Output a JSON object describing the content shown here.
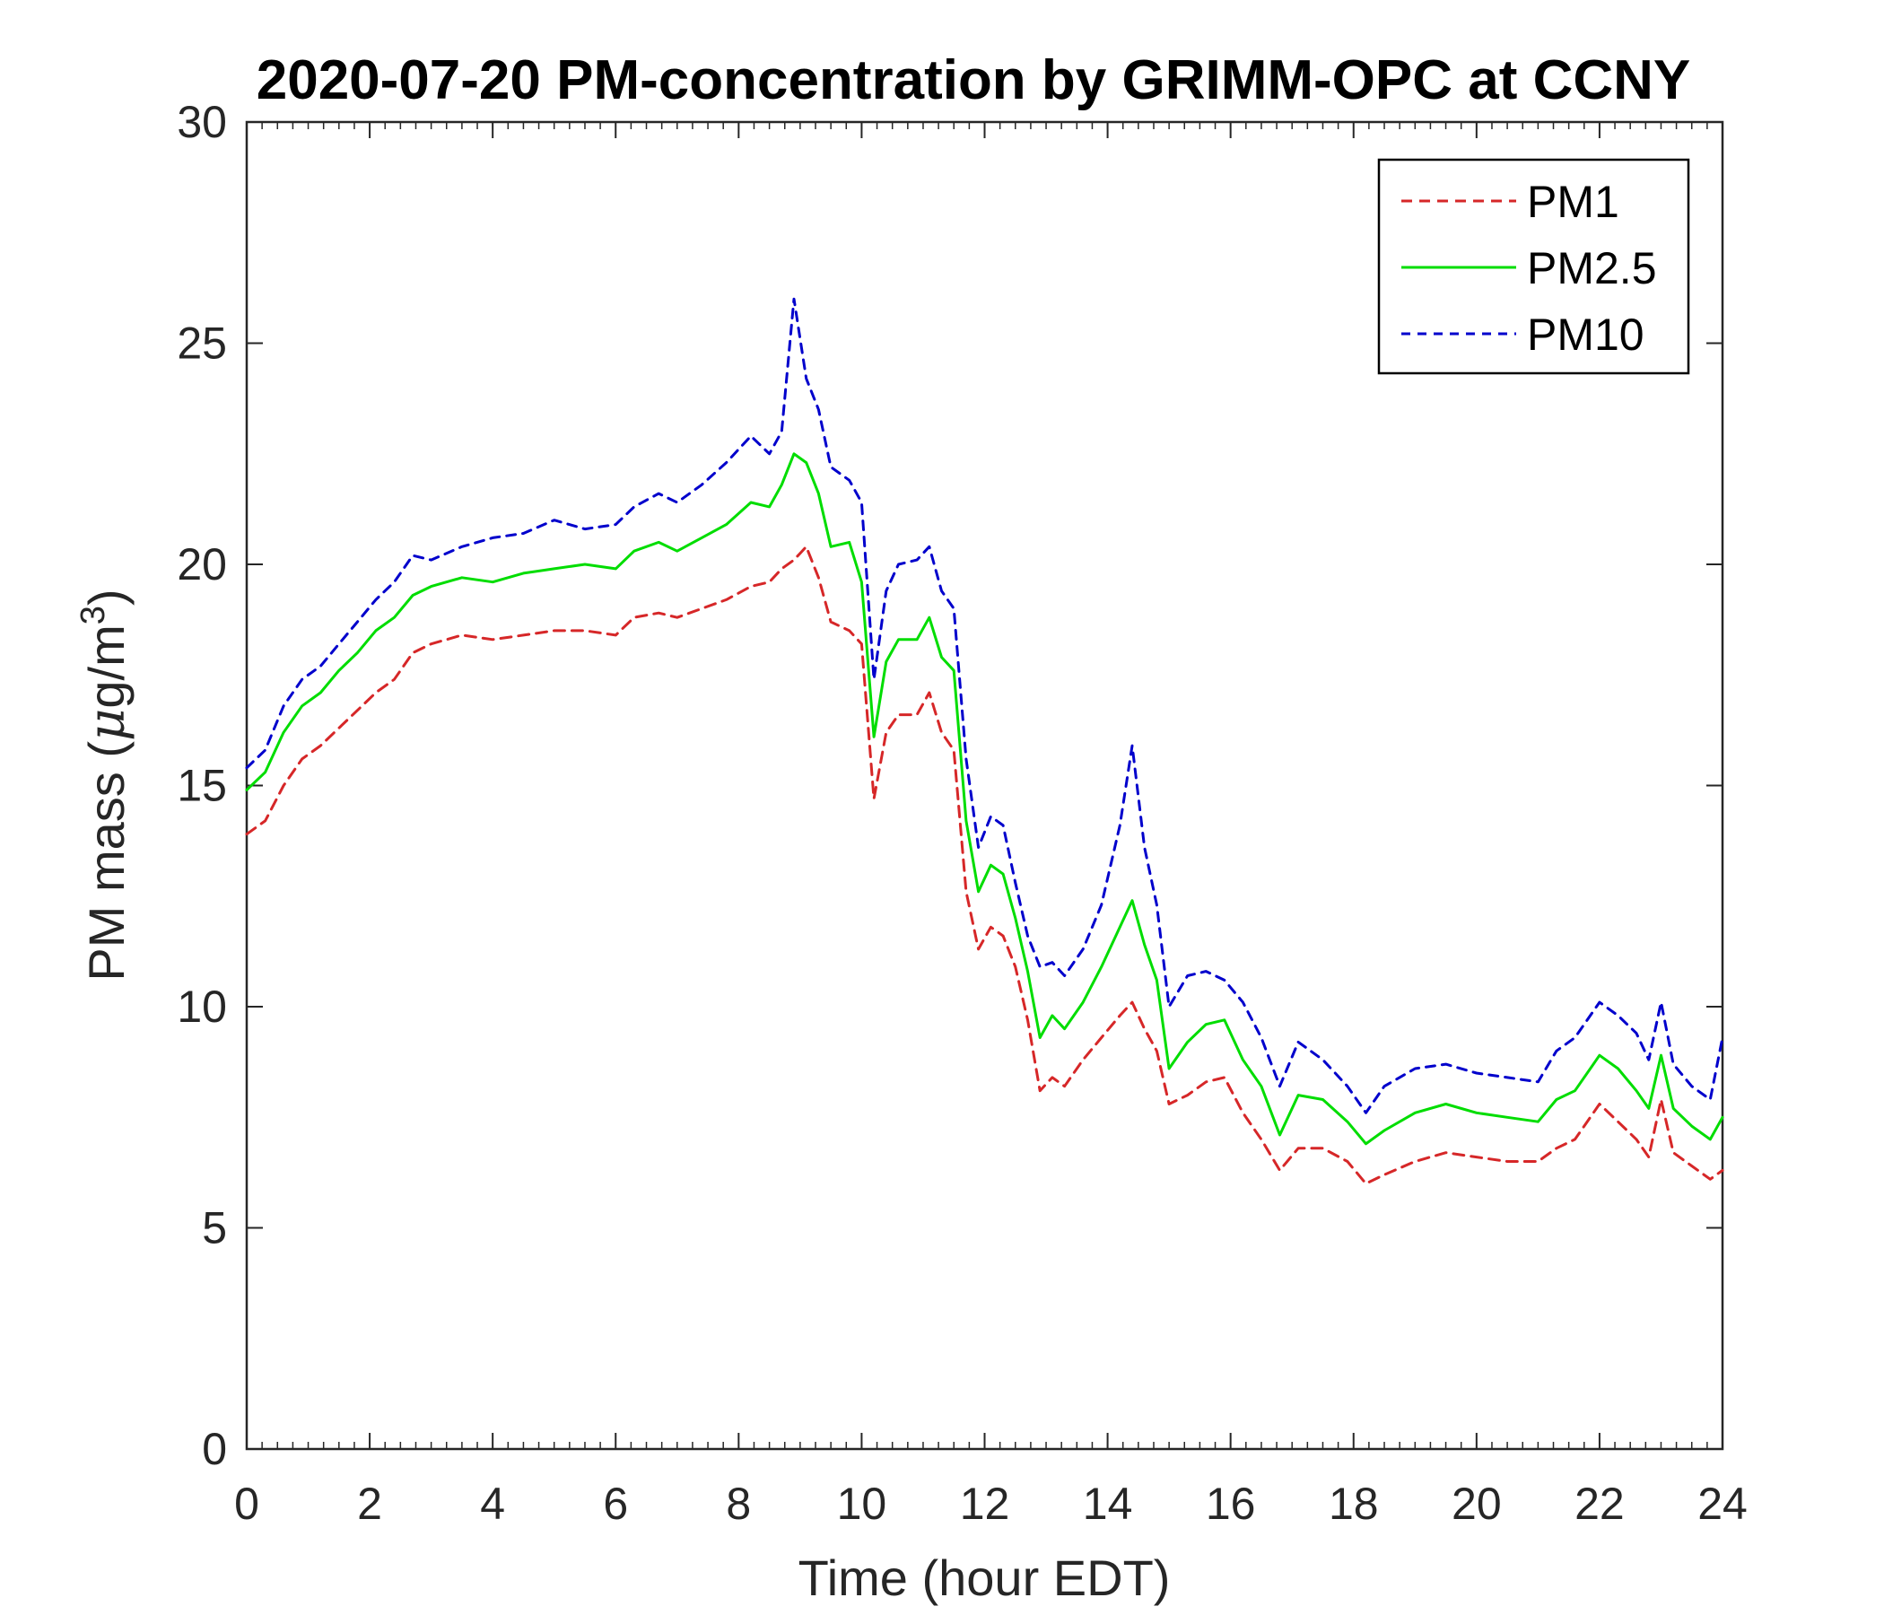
{
  "chart_data": {
    "type": "line",
    "title": "2020-07-20 PM-concentration by GRIMM-OPC at CCNY",
    "xlabel": "Time (hour EDT)",
    "ylabel_main": "PM mass (",
    "ylabel_mu": "μ",
    "ylabel_unit": "g/m",
    "ylabel_sup": "3",
    "ylabel_close": ")",
    "xlim": [
      0,
      24
    ],
    "ylim": [
      0,
      30
    ],
    "x_ticks": [
      0,
      2,
      4,
      6,
      8,
      10,
      12,
      14,
      16,
      18,
      20,
      22,
      24
    ],
    "y_ticks": [
      0,
      5,
      10,
      15,
      20,
      25,
      30
    ],
    "x_tick_labels": [
      "0",
      "2",
      "4",
      "6",
      "8",
      "10",
      "12",
      "14",
      "16",
      "18",
      "20",
      "22",
      "24"
    ],
    "y_tick_labels": [
      "0",
      "5",
      "10",
      "15",
      "20",
      "25",
      "30"
    ],
    "legend_position": "top-right",
    "grid": false,
    "x": [
      0,
      0.3,
      0.6,
      0.9,
      1.2,
      1.5,
      1.8,
      2.1,
      2.4,
      2.7,
      3.0,
      3.5,
      4.0,
      4.5,
      5.0,
      5.5,
      6.0,
      6.3,
      6.7,
      7.0,
      7.4,
      7.8,
      8.2,
      8.5,
      8.7,
      8.9,
      9.1,
      9.3,
      9.5,
      9.8,
      10.0,
      10.2,
      10.4,
      10.6,
      10.9,
      11.1,
      11.3,
      11.5,
      11.7,
      11.9,
      12.1,
      12.3,
      12.5,
      12.7,
      12.9,
      13.1,
      13.3,
      13.6,
      13.9,
      14.2,
      14.4,
      14.6,
      14.8,
      15.0,
      15.3,
      15.6,
      15.9,
      16.2,
      16.5,
      16.8,
      17.1,
      17.5,
      17.9,
      18.2,
      18.5,
      19.0,
      19.5,
      20.0,
      20.5,
      21.0,
      21.3,
      21.6,
      22.0,
      22.3,
      22.6,
      22.8,
      23.0,
      23.2,
      23.5,
      23.8,
      24.0
    ],
    "series": [
      {
        "name": "PM1",
        "color": "#d62728",
        "dash": "12 8",
        "values": [
          13.9,
          14.2,
          15.0,
          15.6,
          15.9,
          16.3,
          16.7,
          17.1,
          17.4,
          18.0,
          18.2,
          18.4,
          18.3,
          18.4,
          18.5,
          18.5,
          18.4,
          18.8,
          18.9,
          18.8,
          19.0,
          19.2,
          19.5,
          19.6,
          19.9,
          20.1,
          20.4,
          19.7,
          18.7,
          18.5,
          18.2,
          14.7,
          16.2,
          16.6,
          16.6,
          17.1,
          16.2,
          15.8,
          12.6,
          11.3,
          11.8,
          11.6,
          10.9,
          9.7,
          8.1,
          8.4,
          8.2,
          8.8,
          9.3,
          9.8,
          10.1,
          9.5,
          9.0,
          7.8,
          8.0,
          8.3,
          8.4,
          7.6,
          7.0,
          6.3,
          6.8,
          6.8,
          6.5,
          6.0,
          6.2,
          6.5,
          6.7,
          6.6,
          6.5,
          6.5,
          6.8,
          7.0,
          7.8,
          7.4,
          7.0,
          6.6,
          7.9,
          6.7,
          6.4,
          6.1,
          6.3
        ]
      },
      {
        "name": "PM2.5",
        "color": "#00dd00",
        "dash": "",
        "values": [
          14.9,
          15.3,
          16.2,
          16.8,
          17.1,
          17.6,
          18.0,
          18.5,
          18.8,
          19.3,
          19.5,
          19.7,
          19.6,
          19.8,
          19.9,
          20.0,
          19.9,
          20.3,
          20.5,
          20.3,
          20.6,
          20.9,
          21.4,
          21.3,
          21.8,
          22.5,
          22.3,
          21.6,
          20.4,
          20.5,
          19.6,
          16.1,
          17.8,
          18.3,
          18.3,
          18.8,
          17.9,
          17.6,
          14.2,
          12.6,
          13.2,
          13.0,
          12.0,
          10.8,
          9.3,
          9.8,
          9.5,
          10.1,
          10.9,
          11.8,
          12.4,
          11.4,
          10.6,
          8.6,
          9.2,
          9.6,
          9.7,
          8.8,
          8.2,
          7.1,
          8.0,
          7.9,
          7.4,
          6.9,
          7.2,
          7.6,
          7.8,
          7.6,
          7.5,
          7.4,
          7.9,
          8.1,
          8.9,
          8.6,
          8.1,
          7.7,
          8.9,
          7.7,
          7.3,
          7.0,
          7.5
        ]
      },
      {
        "name": "PM10",
        "color": "#0000cc",
        "dash": "10 8",
        "values": [
          15.4,
          15.8,
          16.8,
          17.4,
          17.7,
          18.2,
          18.7,
          19.2,
          19.6,
          20.2,
          20.1,
          20.4,
          20.6,
          20.7,
          21.0,
          20.8,
          20.9,
          21.3,
          21.6,
          21.4,
          21.8,
          22.3,
          22.9,
          22.5,
          23.0,
          26.0,
          24.2,
          23.5,
          22.2,
          21.9,
          21.4,
          17.4,
          19.4,
          20.0,
          20.1,
          20.4,
          19.4,
          19.0,
          15.6,
          13.6,
          14.3,
          14.1,
          12.8,
          11.6,
          10.9,
          11.0,
          10.7,
          11.3,
          12.3,
          14.1,
          15.9,
          13.6,
          12.3,
          10.0,
          10.7,
          10.8,
          10.6,
          10.1,
          9.3,
          8.2,
          9.2,
          8.8,
          8.2,
          7.6,
          8.2,
          8.6,
          8.7,
          8.5,
          8.4,
          8.3,
          9.0,
          9.3,
          10.1,
          9.8,
          9.4,
          8.8,
          10.1,
          8.7,
          8.2,
          7.9,
          9.3
        ]
      }
    ]
  }
}
